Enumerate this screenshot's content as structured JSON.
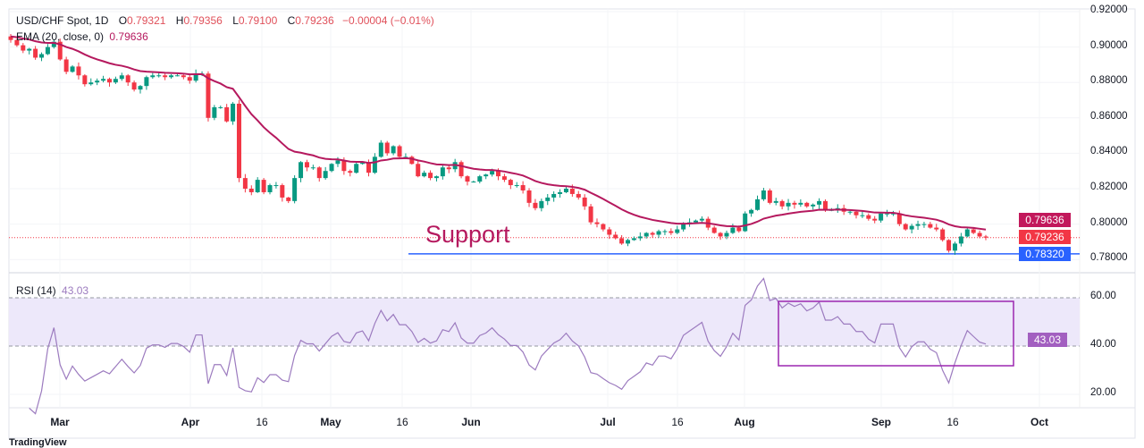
{
  "legend": {
    "symbol": "USD/CHF Spot, 1D",
    "open_label": "O",
    "open": "0.79321",
    "high_label": "H",
    "high": "0.79356",
    "low_label": "L",
    "low": "0.79100",
    "close_label": "C",
    "close": "0.79236",
    "change": "−0.00004 (−0.01%)",
    "ema_label": "EMA (20, close, 0)",
    "ema_value": "0.79636",
    "rsi_label": "RSI (14)",
    "rsi_value": "43.03"
  },
  "annotations": {
    "support_text": "Support",
    "support_level": "0.78320"
  },
  "price_labels": {
    "ema": "0.79636",
    "last": "0.79236",
    "support": "0.78320",
    "rsi": "43.03"
  },
  "branding": "TradingView",
  "colors": {
    "up": "#089981",
    "down": "#f23645",
    "ema": "#b5195e",
    "support": "#2962ff",
    "rsi": "#9c7bbf",
    "rsi_band": "#ede8fa",
    "box": "#9c27b0"
  },
  "chart_data": [
    {
      "type": "candlestick",
      "title": "USD/CHF Spot, 1D",
      "y_ticks": [
        "0.92000",
        "0.90000",
        "0.88000",
        "0.86000",
        "0.84000",
        "0.82000",
        "0.80000",
        "0.78000"
      ],
      "ylim": [
        0.78,
        0.92
      ],
      "x_ticks": [
        {
          "label": "Mar",
          "bold": true
        },
        {
          "label": "Apr",
          "bold": true
        },
        {
          "label": "16",
          "bold": false
        },
        {
          "label": "May",
          "bold": true
        },
        {
          "label": "16",
          "bold": false
        },
        {
          "label": "Jun",
          "bold": true
        },
        {
          "label": "Jul",
          "bold": true
        },
        {
          "label": "16",
          "bold": false
        },
        {
          "label": "Aug",
          "bold": true
        },
        {
          "label": "Sep",
          "bold": true
        },
        {
          "label": "16",
          "bold": false
        },
        {
          "label": "Oct",
          "bold": true
        }
      ],
      "closes": [
        0.904,
        0.901,
        0.898,
        0.899,
        0.894,
        0.896,
        0.9,
        0.903,
        0.893,
        0.886,
        0.889,
        0.884,
        0.879,
        0.88,
        0.881,
        0.882,
        0.88,
        0.882,
        0.884,
        0.88,
        0.876,
        0.878,
        0.883,
        0.884,
        0.884,
        0.883,
        0.884,
        0.884,
        0.883,
        0.881,
        0.885,
        0.885,
        0.86,
        0.866,
        0.866,
        0.858,
        0.868,
        0.826,
        0.82,
        0.818,
        0.825,
        0.818,
        0.822,
        0.822,
        0.815,
        0.813,
        0.826,
        0.835,
        0.832,
        0.832,
        0.826,
        0.83,
        0.834,
        0.836,
        0.83,
        0.829,
        0.834,
        0.835,
        0.829,
        0.838,
        0.846,
        0.84,
        0.844,
        0.838,
        0.838,
        0.834,
        0.827,
        0.829,
        0.826,
        0.827,
        0.832,
        0.831,
        0.835,
        0.827,
        0.824,
        0.824,
        0.827,
        0.828,
        0.83,
        0.827,
        0.825,
        0.822,
        0.822,
        0.819,
        0.812,
        0.809,
        0.813,
        0.815,
        0.817,
        0.818,
        0.82,
        0.817,
        0.815,
        0.81,
        0.801,
        0.8,
        0.797,
        0.794,
        0.792,
        0.789,
        0.791,
        0.792,
        0.793,
        0.795,
        0.794,
        0.796,
        0.796,
        0.795,
        0.797,
        0.8,
        0.801,
        0.802,
        0.803,
        0.798,
        0.795,
        0.793,
        0.795,
        0.798,
        0.796,
        0.806,
        0.808,
        0.814,
        0.819,
        0.812,
        0.813,
        0.81,
        0.812,
        0.811,
        0.812,
        0.81,
        0.811,
        0.813,
        0.808,
        0.808,
        0.809,
        0.807,
        0.807,
        0.805,
        0.805,
        0.803,
        0.802,
        0.806,
        0.806,
        0.806,
        0.8,
        0.797,
        0.799,
        0.8,
        0.8,
        0.798,
        0.797,
        0.791,
        0.785,
        0.789,
        0.793,
        0.797,
        0.795,
        0.793,
        0.79236
      ],
      "ema": {
        "period": 20,
        "last": 0.79636
      },
      "support": 0.7832
    },
    {
      "type": "line",
      "title": "RSI (14)",
      "y_ticks": [
        "60.00",
        "40.00",
        "20.00"
      ],
      "ylim": [
        10,
        70
      ],
      "bands": [
        40,
        60
      ],
      "last": 43.03
    }
  ]
}
